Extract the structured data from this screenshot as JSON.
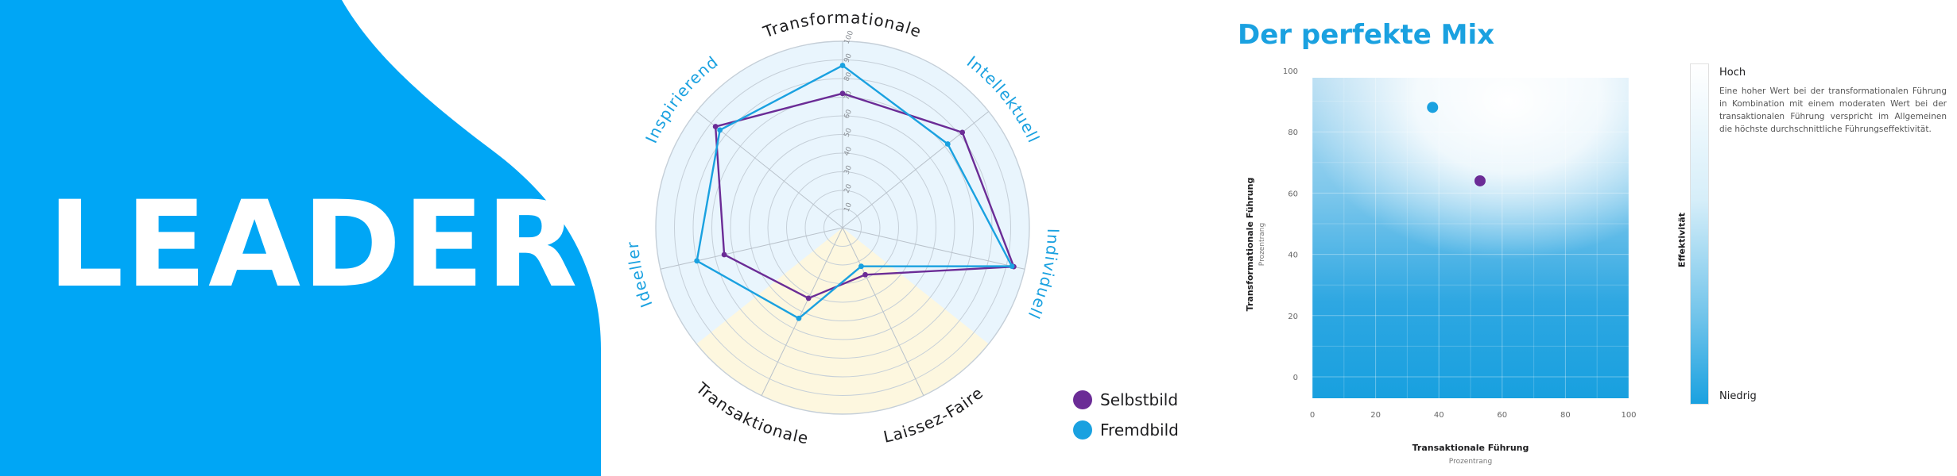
{
  "banner": {
    "title": "LEADER",
    "bg_color": "#00a6f5",
    "text_color": "#ffffff"
  },
  "colors": {
    "selbst": "#6b2c96",
    "fremd": "#1aa1e0",
    "accent": "#1aa1e0",
    "label_dark": "#1d1d1f",
    "label_blue": "#1aa1e0"
  },
  "radar": {
    "tick_labels": [
      "10",
      "20",
      "30",
      "40",
      "50",
      "60",
      "70",
      "80",
      "90",
      "100"
    ],
    "axes": [
      {
        "label": "Transformationale",
        "color": "dark"
      },
      {
        "label": "Intellektuell",
        "color": "blue"
      },
      {
        "label": "Individuell",
        "color": "blue"
      },
      {
        "label": "Laissez-Faire",
        "color": "dark"
      },
      {
        "label": "Transaktionale",
        "color": "dark"
      },
      {
        "label": "Ideeller",
        "color": "blue"
      },
      {
        "label": "Inspirierend",
        "color": "blue"
      }
    ],
    "legend": {
      "selbst": "Selbstbild",
      "fremd": "Fremdbild"
    }
  },
  "chart_data": [
    {
      "type": "radar",
      "title": "",
      "axes": [
        "Transformationale",
        "Intellektuell",
        "Individuell",
        "Laissez-Faire",
        "Transaktionale",
        "Ideeller",
        "Inspirierend"
      ],
      "range": [
        0,
        100
      ],
      "series": [
        {
          "name": "Selbstbild",
          "values": [
            72,
            82,
            94,
            28,
            42,
            65,
            87
          ]
        },
        {
          "name": "Fremdbild",
          "values": [
            87,
            72,
            93,
            23,
            54,
            80,
            84
          ]
        }
      ]
    },
    {
      "type": "scatter",
      "title": "Der perfekte Mix",
      "xlabel": "Transaktionale Führung",
      "xsublabel": "Prozentrang",
      "ylabel": "Transformationale Führung",
      "ysublabel": "Prozentrang",
      "xlim": [
        0,
        100
      ],
      "ylim": [
        -7,
        107
      ],
      "xticks": [
        "0",
        "20",
        "40",
        "60",
        "80",
        "100"
      ],
      "yticks": [
        "0",
        "20",
        "40",
        "60",
        "80",
        "100"
      ],
      "series": [
        {
          "name": "Fremdbild",
          "x": [
            38
          ],
          "y": [
            88
          ]
        },
        {
          "name": "Selbstbild",
          "x": [
            53
          ],
          "y": [
            64
          ]
        }
      ],
      "colorbar": {
        "label": "Effektivität",
        "high": "Hoch",
        "low": "Niedrig"
      }
    }
  ],
  "mix": {
    "title": "Der perfekte Mix",
    "description": "Eine hoher Wert bei der transformationalen Führung in Kombination mit einem moderaten Wert bei der transaktionalen Führung verspricht im Allgemeinen die höchste durchschnittliche Führungseffektivität."
  }
}
